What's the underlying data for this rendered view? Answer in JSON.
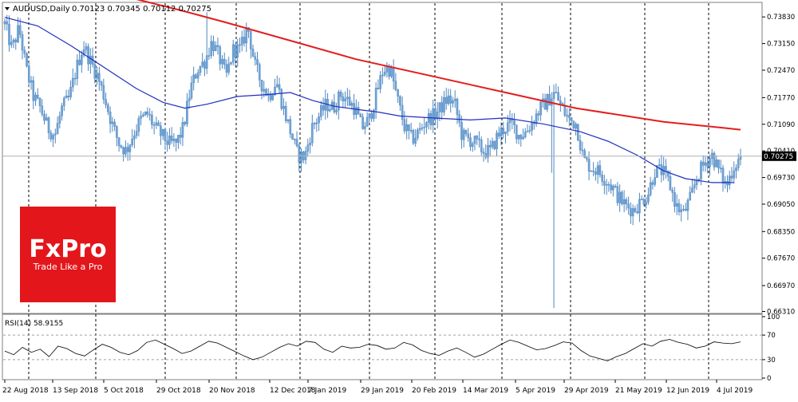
{
  "chart_data": [
    {
      "type": "candlestick",
      "symbol_label": "AUDUSD,Daily",
      "ohlc_label": "0.70123 0.70345 0.70112 0.70275",
      "ylim": [
        0.6632,
        0.7414
      ],
      "y_ticks": [
        "0.73830",
        "0.73150",
        "0.72470",
        "0.71770",
        "0.71090",
        "0.70410",
        "0.69730",
        "0.69050",
        "0.68350",
        "0.67670",
        "0.66970",
        "0.66310"
      ],
      "current_price_label": "0.70275",
      "current_price": 0.70275,
      "x_tick_labels": [
        "22 Aug 2018",
        "13 Sep 2018",
        "5 Oct 2018",
        "29 Oct 2018",
        "20 Nov 2018",
        "12 Dec 2018",
        "7 Jan 2019",
        "29 Jan 2019",
        "20 Feb 2019",
        "14 Mar 2019",
        "5 Apr 2019",
        "29 Apr 2019",
        "21 May 2019",
        "12 Jun 2019",
        "4 Jul 2019"
      ],
      "month_separators": [
        "Sep 2018",
        "Oct 2018",
        "Nov 2018",
        "Dec 2018",
        "Jan 2019",
        "Feb 2019",
        "Mar 2019",
        "Apr 2019",
        "May 2019",
        "Jun 2019",
        "Jul 2019"
      ],
      "close_path": [
        0.7365,
        0.73,
        0.7355,
        0.725,
        0.718,
        0.715,
        0.71,
        0.708,
        0.715,
        0.7175,
        0.725,
        0.731,
        0.727,
        0.723,
        0.7175,
        0.711,
        0.706,
        0.704,
        0.7085,
        0.712,
        0.7135,
        0.71,
        0.708,
        0.706,
        0.706,
        0.71,
        0.72,
        0.725,
        0.727,
        0.732,
        0.728,
        0.723,
        0.73,
        0.73,
        0.736,
        0.726,
        0.721,
        0.718,
        0.722,
        0.715,
        0.709,
        0.703,
        0.7025,
        0.71,
        0.713,
        0.716,
        0.715,
        0.7185,
        0.717,
        0.715,
        0.71,
        0.712,
        0.7185,
        0.725,
        0.725,
        0.717,
        0.71,
        0.707,
        0.709,
        0.712,
        0.713,
        0.715,
        0.7175,
        0.716,
        0.708,
        0.707,
        0.706,
        0.704,
        0.704,
        0.708,
        0.71,
        0.711,
        0.708,
        0.709,
        0.712,
        0.715,
        0.717,
        0.719,
        0.715,
        0.712,
        0.711,
        0.702,
        0.7,
        0.699,
        0.697,
        0.695,
        0.692,
        0.69,
        0.689,
        0.691,
        0.693,
        0.699,
        0.699,
        0.696,
        0.69,
        0.688,
        0.692,
        0.698,
        0.701,
        0.703,
        0.699,
        0.695,
        0.7,
        0.7025
      ],
      "series": [
        {
          "kind": "moving-average-long",
          "color": "#e31d1d",
          "values": [
            [
              48,
              0.7445
            ],
            [
              80,
              0.74
            ],
            [
              100,
              0.737
            ],
            [
              160,
              0.7275
            ],
            [
              212,
              0.721
            ],
            [
              260,
              0.715
            ],
            [
              300,
              0.7115
            ],
            [
              327,
              0.71
            ],
            [
              335,
              0.7095
            ]
          ]
        },
        {
          "kind": "moving-average-short",
          "color": "#1f2fbf",
          "values": [
            [
              0,
              0.7382
            ],
            [
              15,
              0.736
            ],
            [
              30,
              0.731
            ],
            [
              45,
              0.7255
            ],
            [
              60,
              0.72
            ],
            [
              72,
              0.7165
            ],
            [
              82,
              0.715
            ],
            [
              92,
              0.716
            ],
            [
              106,
              0.718
            ],
            [
              120,
              0.7185
            ],
            [
              130,
              0.719
            ],
            [
              140,
              0.717
            ],
            [
              150,
              0.7155
            ],
            [
              163,
              0.7145
            ],
            [
              170,
              0.714
            ],
            [
              180,
              0.713
            ],
            [
              195,
              0.7125
            ],
            [
              212,
              0.712
            ],
            [
              228,
              0.7125
            ],
            [
              245,
              0.711
            ],
            [
              262,
              0.709
            ],
            [
              275,
              0.7065
            ],
            [
              288,
              0.703
            ],
            [
              300,
              0.699
            ],
            [
              310,
              0.697
            ],
            [
              322,
              0.696
            ],
            [
              332,
              0.696
            ]
          ]
        }
      ],
      "grid": false,
      "background": "#ffffff"
    },
    {
      "type": "line",
      "label": "RSI(14) 58.9155",
      "ylim": [
        0,
        100
      ],
      "y_ticks": [
        "100",
        "70",
        "30",
        "0"
      ],
      "levels": [
        70,
        30
      ],
      "color": "#000000",
      "values": [
        44,
        38,
        50,
        42,
        47,
        35,
        52,
        48,
        40,
        36,
        46,
        55,
        50,
        42,
        38,
        45,
        58,
        62,
        55,
        48,
        40,
        44,
        52,
        60,
        57,
        50,
        43,
        36,
        30,
        34,
        42,
        50,
        56,
        52,
        60,
        58,
        47,
        42,
        52,
        49,
        50,
        55,
        53,
        47,
        49,
        58,
        54,
        45,
        40,
        37,
        44,
        49,
        42,
        34,
        39,
        47,
        55,
        62,
        58,
        52,
        46,
        48,
        53,
        59,
        57,
        45,
        36,
        32,
        28,
        35,
        40,
        48,
        56,
        52,
        60,
        63,
        58,
        55,
        49,
        52,
        59,
        57,
        56,
        58.9
      ]
    }
  ],
  "brand": {
    "logo_text": "FxPro",
    "tagline": "Trade Like a Pro",
    "color": "#e3161b"
  }
}
